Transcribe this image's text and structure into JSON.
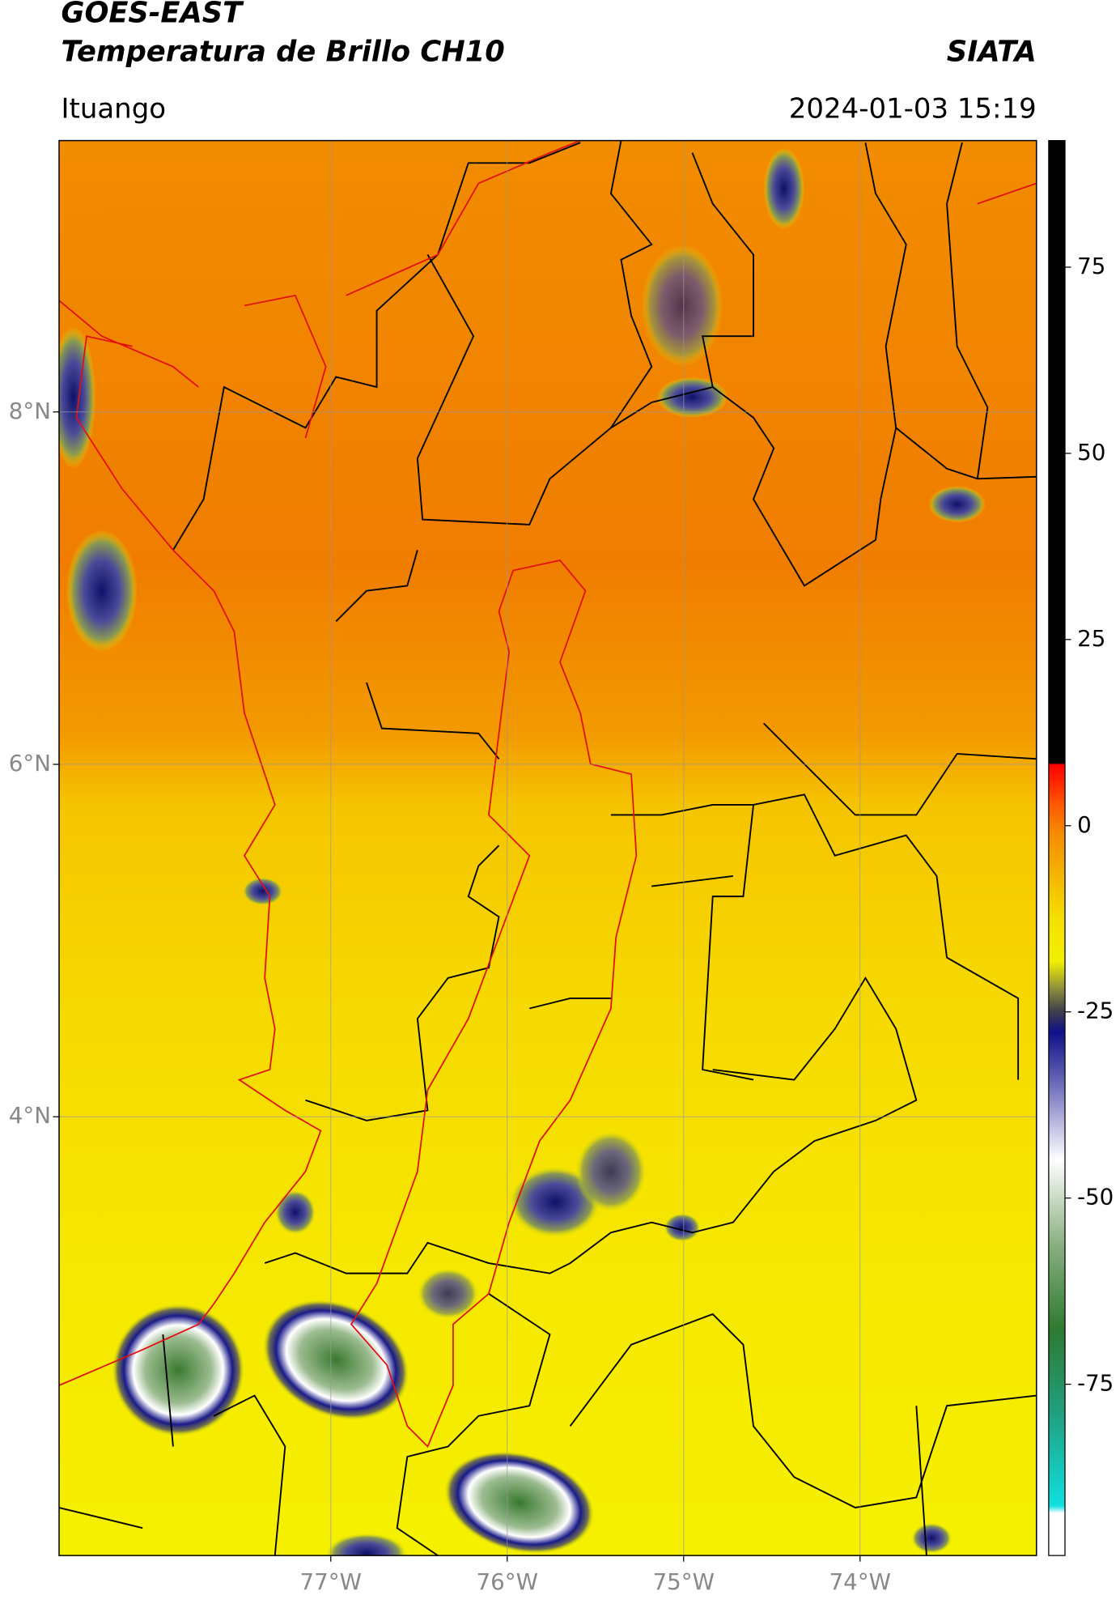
{
  "header": {
    "title": "GOES-EAST",
    "subtitle": "Temperatura de Brillo CH10",
    "brand": "SIATA",
    "location": "Ituango",
    "datetime": "2024-01-03 15:19"
  },
  "map": {
    "xlim": [
      -78.54,
      -73.0
    ],
    "ylim": [
      1.51,
      9.54
    ],
    "xticks": [
      {
        "value": -77,
        "label": "77°W"
      },
      {
        "value": -76,
        "label": "76°W"
      },
      {
        "value": -75,
        "label": "75°W"
      },
      {
        "value": -74,
        "label": "74°W"
      }
    ],
    "yticks": [
      {
        "value": 4,
        "label": "4°N"
      },
      {
        "value": 6,
        "label": "6°N"
      },
      {
        "value": 8,
        "label": "8°N"
      }
    ],
    "grid": true
  },
  "colorbar": {
    "lim": [
      -98,
      92
    ],
    "ticks": [
      75,
      50,
      25,
      0,
      -25,
      -50,
      -75
    ]
  }
}
